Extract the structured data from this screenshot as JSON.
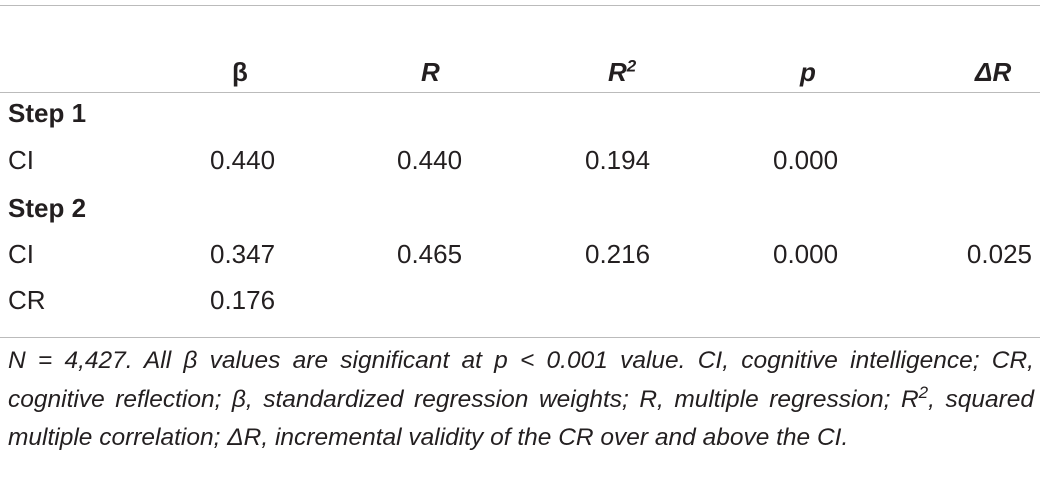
{
  "table": {
    "header": [
      "β",
      "R",
      {
        "base": "R",
        "sup": "2"
      },
      "p",
      "ΔR"
    ],
    "sections": [
      {
        "title": "Step 1",
        "rows": [
          [
            "CI",
            "0.440",
            "0.440",
            "0.194",
            "0.000"
          ]
        ]
      },
      {
        "title": "Step 2",
        "rows": [
          [
            "CI",
            "0.347",
            "0.465",
            "0.216",
            "0.000",
            "0.025"
          ],
          [
            "CR",
            "0.176"
          ]
        ]
      }
    ]
  },
  "footnote": [
    "N = 4,427. All β values are significant at p < 0.001 value. CI, cognitive intelligence; CR, cognitive reflection; β, standardized regression weights; R, multiple regression; R",
    "2",
    ", squared multiple correlation; ΔR, incremental validity of the CR over and above the CI."
  ]
}
